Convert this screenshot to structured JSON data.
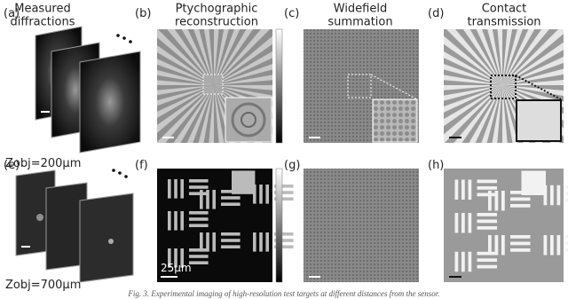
{
  "panels_top": [
    {
      "label": "(a)",
      "title": [
        "Measured",
        "diffractions"
      ]
    },
    {
      "label": "(b)",
      "title": [
        "Ptychographic",
        "reconstruction"
      ]
    },
    {
      "label": "(c)",
      "title": [
        "Widefield",
        "summation"
      ]
    },
    {
      "label": "(d)",
      "title": [
        "Contact",
        "transmission"
      ]
    }
  ],
  "panels_bottom": [
    "(e)",
    "(f)",
    "(g)",
    "(h)"
  ],
  "annotations": {
    "zobj_top": "Zobj=200μm",
    "zobj_bottom": "Zobj=700μm",
    "scale": "25μm"
  },
  "caption": "Fig. 3. Experimental imaging of high-resolution test targets at different distances from the sensor."
}
